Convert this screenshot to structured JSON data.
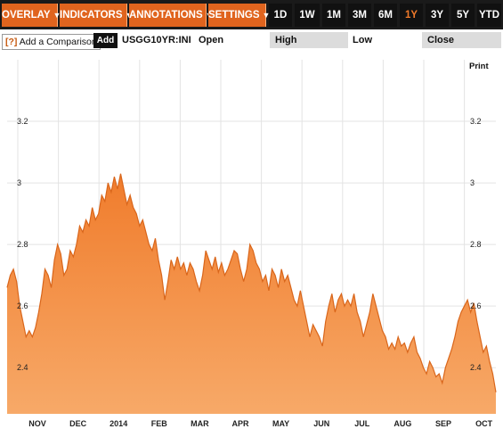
{
  "toolbar": {
    "menus": [
      {
        "label": "OVERLAY",
        "caret": "▼"
      },
      {
        "label": "INDICATORS",
        "caret": "▼"
      },
      {
        "label": "ANNOTATIONS",
        "caret": "▼"
      },
      {
        "label": "SETTINGS",
        "caret": "▼"
      }
    ],
    "ranges": [
      "1D",
      "1W",
      "1M",
      "3M",
      "6M",
      "1Y",
      "3Y",
      "5Y",
      "YTD"
    ],
    "active_range": "1Y"
  },
  "comparison": {
    "help": "[?]",
    "label": "Add a Comparison",
    "add_label": "Add",
    "ticker": "USGG10YR:INI"
  },
  "stats": {
    "open_label": "Open",
    "high_label": "High",
    "low_label": "Low",
    "close_label": "Close"
  },
  "print_label": "Print",
  "colors": {
    "accent": "#e0641e",
    "area_fill": "#f28a3c",
    "area_line": "#d9661b"
  },
  "chart_data": {
    "type": "area",
    "xlabel": "",
    "ylabel": "",
    "x_ticks": [
      "NOV",
      "DEC",
      "2014",
      "FEB",
      "MAR",
      "APR",
      "MAY",
      "JUN",
      "JUL",
      "AUG",
      "SEP",
      "OCT"
    ],
    "y_ticks": [
      "3.2",
      "3",
      "2.8",
      "2.6",
      "2.4"
    ],
    "ylim": [
      2.25,
      3.4
    ],
    "grid": true,
    "series": [
      {
        "values": [
          2.66,
          2.7,
          2.72,
          2.68,
          2.6,
          2.55,
          2.5,
          2.52,
          2.5,
          2.53,
          2.58,
          2.64,
          2.72,
          2.7,
          2.66,
          2.75,
          2.8,
          2.77,
          2.7,
          2.72,
          2.78,
          2.76,
          2.8,
          2.86,
          2.84,
          2.88,
          2.86,
          2.92,
          2.88,
          2.9,
          2.96,
          2.94,
          3.0,
          2.97,
          3.02,
          2.98,
          3.03,
          2.98,
          2.93,
          2.96,
          2.92,
          2.9,
          2.86,
          2.88,
          2.84,
          2.8,
          2.78,
          2.82,
          2.75,
          2.7,
          2.62,
          2.68,
          2.75,
          2.72,
          2.76,
          2.72,
          2.74,
          2.7,
          2.74,
          2.72,
          2.68,
          2.65,
          2.7,
          2.78,
          2.75,
          2.72,
          2.76,
          2.71,
          2.74,
          2.7,
          2.72,
          2.75,
          2.78,
          2.77,
          2.72,
          2.68,
          2.72,
          2.8,
          2.78,
          2.74,
          2.72,
          2.68,
          2.7,
          2.65,
          2.72,
          2.7,
          2.66,
          2.72,
          2.68,
          2.7,
          2.66,
          2.62,
          2.6,
          2.65,
          2.6,
          2.55,
          2.5,
          2.54,
          2.52,
          2.5,
          2.47,
          2.55,
          2.6,
          2.64,
          2.58,
          2.62,
          2.64,
          2.6,
          2.62,
          2.6,
          2.64,
          2.58,
          2.55,
          2.5,
          2.54,
          2.58,
          2.64,
          2.6,
          2.56,
          2.52,
          2.5,
          2.46,
          2.48,
          2.46,
          2.5,
          2.47,
          2.48,
          2.45,
          2.48,
          2.5,
          2.45,
          2.43,
          2.4,
          2.38,
          2.42,
          2.4,
          2.37,
          2.38,
          2.35,
          2.4,
          2.43,
          2.46,
          2.5,
          2.55,
          2.58,
          2.6,
          2.62,
          2.58,
          2.61,
          2.55,
          2.5,
          2.45,
          2.47,
          2.42,
          2.38,
          2.32
        ]
      }
    ]
  }
}
